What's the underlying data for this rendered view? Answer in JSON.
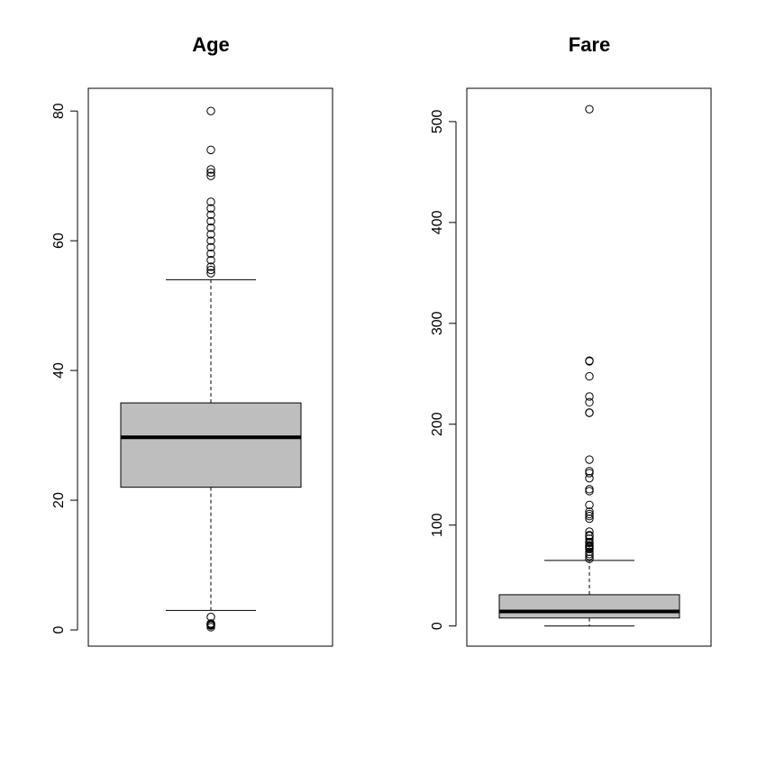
{
  "chart_data": [
    {
      "type": "boxplot",
      "title": "Age",
      "ylim": [
        -2.5,
        83.5
      ],
      "yticks": [
        0,
        20,
        40,
        60,
        80
      ],
      "box": {
        "min": 3,
        "q1": 22,
        "median": 29.7,
        "q3": 35,
        "max": 54,
        "fill": "#bebebe"
      },
      "outliers": [
        0.42,
        0.67,
        0.75,
        0.83,
        0.92,
        1,
        2,
        55,
        55.5,
        56,
        57,
        58,
        59,
        60,
        61,
        62,
        63,
        64,
        65,
        66,
        70,
        70.5,
        71,
        74,
        80
      ]
    },
    {
      "type": "boxplot",
      "title": "Fare",
      "ylim": [
        -20,
        533
      ],
      "yticks": [
        0,
        100,
        200,
        300,
        400,
        500
      ],
      "box": {
        "min": 0,
        "q1": 7.9,
        "median": 14.45,
        "q3": 31,
        "max": 65,
        "fill": "#bebebe"
      },
      "outliers": [
        66.6,
        69.3,
        71.3,
        73.5,
        76.3,
        77.3,
        78.3,
        79.2,
        80,
        82.2,
        83.2,
        86.5,
        89.1,
        90,
        93.5,
        106.4,
        108.9,
        110.9,
        113.3,
        120,
        133.7,
        135.6,
        146.5,
        151.6,
        153.5,
        164.9,
        211.3,
        211.5,
        221.8,
        227.5,
        247.5,
        262.4,
        263,
        512.3
      ]
    }
  ]
}
